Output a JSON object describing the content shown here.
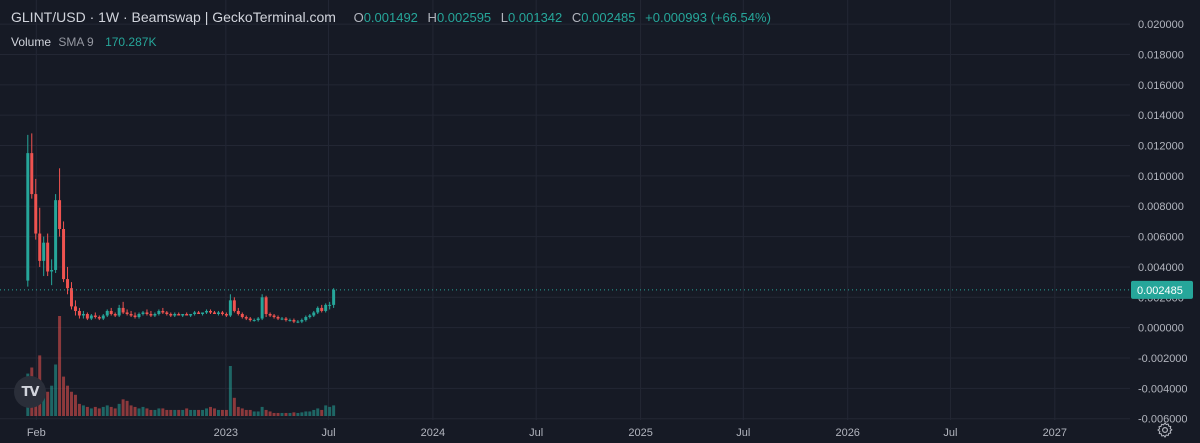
{
  "legend": {
    "title": "GLINT/USD · 1W · Beamswap | GeckoTerminal.com",
    "o_label": "O",
    "o": "0.001492",
    "h_label": "H",
    "h": "0.002595",
    "l_label": "L",
    "l": "0.001342",
    "c_label": "C",
    "c": "0.002485",
    "change": "+0.000993 (+66.54%)"
  },
  "volume_legend": {
    "name": "Volume",
    "sma": "SMA 9",
    "value": "170.287K"
  },
  "logo_text": "TV",
  "icons": {
    "logo": "tradingview-logo-icon",
    "settings": "gear-icon"
  },
  "colors": {
    "background": "#161a25",
    "up": "#26a69a",
    "down": "#ef5350",
    "text": "#b2b5be",
    "grid": "#232734"
  },
  "chart_data": {
    "type": "candlestick",
    "title": "GLINT/USD · 1W · Beamswap | GeckoTerminal.com",
    "interval": "1W",
    "price_axis": {
      "ticks": [
        "0.020000",
        "0.018000",
        "0.016000",
        "0.014000",
        "0.012000",
        "0.010000",
        "0.008000",
        "0.006000",
        "0.004000",
        "0.002000",
        "0.000000",
        "-0.002000",
        "-0.004000",
        "-0.006000"
      ],
      "range": [
        -0.0076,
        0.0206
      ]
    },
    "time_axis": {
      "ticks": [
        "Feb",
        "2023",
        "Jul",
        "2024",
        "Jul",
        "2025",
        "Jul",
        "2026",
        "Jul",
        "2027"
      ],
      "range": [
        "2021-11-29",
        "2027-05-10"
      ]
    },
    "tick_dates": [
      "2022-02-01",
      "2023-01-01",
      "2023-07-01",
      "2024-01-01",
      "2024-07-01",
      "2025-01-01",
      "2025-07-01",
      "2026-01-01",
      "2026-07-01",
      "2027-01-01"
    ],
    "first_candle_date": "2022-01-17",
    "last_price": 0.002485,
    "last_price_label": "0.002485",
    "grid": false,
    "volume_max": 3.3,
    "ohlc": [
      [
        0.0031,
        0.0127,
        0.0027,
        0.0115,
        1.4
      ],
      [
        0.0115,
        0.0128,
        0.0085,
        0.0088,
        1.6
      ],
      [
        0.0088,
        0.0098,
        0.0058,
        0.0062,
        1.2
      ],
      [
        0.0062,
        0.0079,
        0.004,
        0.0044,
        2.0
      ],
      [
        0.0044,
        0.006,
        0.0034,
        0.0056,
        0.9
      ],
      [
        0.0056,
        0.0062,
        0.0034,
        0.0037,
        0.8
      ],
      [
        0.0037,
        0.0045,
        0.0028,
        0.0038,
        1.0
      ],
      [
        0.0038,
        0.0088,
        0.0036,
        0.0084,
        1.7
      ],
      [
        0.0084,
        0.0105,
        0.006,
        0.0065,
        3.3
      ],
      [
        0.0065,
        0.007,
        0.003,
        0.0032,
        1.3
      ],
      [
        0.0032,
        0.004,
        0.0022,
        0.0026,
        1.0
      ],
      [
        0.0026,
        0.003,
        0.0012,
        0.0014,
        0.8
      ],
      [
        0.0014,
        0.0018,
        0.0008,
        0.0011,
        0.7
      ],
      [
        0.0011,
        0.0013,
        0.0006,
        0.0008,
        0.4
      ],
      [
        0.0008,
        0.0011,
        0.0006,
        0.0009,
        0.35
      ],
      [
        0.0009,
        0.001,
        0.0005,
        0.0006,
        0.3
      ],
      [
        0.0006,
        0.0009,
        0.0005,
        0.0008,
        0.25
      ],
      [
        0.0008,
        0.001,
        0.0006,
        0.0007,
        0.3
      ],
      [
        0.0007,
        0.0008,
        0.0005,
        0.0006,
        0.25
      ],
      [
        0.0006,
        0.0009,
        0.0005,
        0.0008,
        0.3
      ],
      [
        0.0008,
        0.0012,
        0.0007,
        0.0011,
        0.35
      ],
      [
        0.0011,
        0.0013,
        0.0008,
        0.0009,
        0.3
      ],
      [
        0.0009,
        0.001,
        0.0007,
        0.0008,
        0.25
      ],
      [
        0.0008,
        0.0015,
        0.0007,
        0.0013,
        0.4
      ],
      [
        0.0013,
        0.0017,
        0.0009,
        0.001,
        0.55
      ],
      [
        0.001,
        0.0012,
        0.0008,
        0.0009,
        0.5
      ],
      [
        0.0009,
        0.0011,
        0.0007,
        0.0008,
        0.35
      ],
      [
        0.0008,
        0.001,
        0.0006,
        0.0007,
        0.3
      ],
      [
        0.0007,
        0.001,
        0.0006,
        0.0009,
        0.25
      ],
      [
        0.0009,
        0.0011,
        0.0008,
        0.001,
        0.3
      ],
      [
        0.001,
        0.0012,
        0.0008,
        0.0009,
        0.25
      ],
      [
        0.0009,
        0.0011,
        0.0007,
        0.0008,
        0.2
      ],
      [
        0.0008,
        0.001,
        0.0007,
        0.0009,
        0.2
      ],
      [
        0.0009,
        0.0012,
        0.0008,
        0.0011,
        0.25
      ],
      [
        0.0011,
        0.0013,
        0.0009,
        0.001,
        0.25
      ],
      [
        0.001,
        0.0011,
        0.0008,
        0.0009,
        0.2
      ],
      [
        0.0009,
        0.001,
        0.0007,
        0.0008,
        0.2
      ],
      [
        0.0008,
        0.001,
        0.0007,
        0.0009,
        0.2
      ],
      [
        0.0009,
        0.001,
        0.0008,
        0.0008,
        0.2
      ],
      [
        0.0008,
        0.0009,
        0.0007,
        0.0009,
        0.2
      ],
      [
        0.0009,
        0.001,
        0.0008,
        0.0008,
        0.25
      ],
      [
        0.0008,
        0.0009,
        0.0007,
        0.0009,
        0.2
      ],
      [
        0.0009,
        0.0011,
        0.0008,
        0.001,
        0.2
      ],
      [
        0.001,
        0.0011,
        0.0009,
        0.0009,
        0.2
      ],
      [
        0.0009,
        0.001,
        0.0008,
        0.001,
        0.2
      ],
      [
        0.001,
        0.0012,
        0.0009,
        0.0011,
        0.25
      ],
      [
        0.0011,
        0.0012,
        0.0009,
        0.001,
        0.3
      ],
      [
        0.001,
        0.0011,
        0.0009,
        0.0009,
        0.25
      ],
      [
        0.0009,
        0.0011,
        0.0008,
        0.001,
        0.2
      ],
      [
        0.001,
        0.0011,
        0.0008,
        0.0009,
        0.2
      ],
      [
        0.0009,
        0.001,
        0.0007,
        0.0008,
        0.2
      ],
      [
        0.0008,
        0.0022,
        0.0007,
        0.0018,
        1.65
      ],
      [
        0.0018,
        0.002,
        0.001,
        0.0011,
        0.6
      ],
      [
        0.0011,
        0.0013,
        0.0008,
        0.0009,
        0.3
      ],
      [
        0.0009,
        0.001,
        0.0006,
        0.0007,
        0.25
      ],
      [
        0.0007,
        0.0008,
        0.0005,
        0.0006,
        0.2
      ],
      [
        0.0006,
        0.0007,
        0.0004,
        0.0005,
        0.2
      ],
      [
        0.0005,
        0.0006,
        0.0004,
        0.0005,
        0.15
      ],
      [
        0.0005,
        0.0007,
        0.0004,
        0.0006,
        0.15
      ],
      [
        0.0006,
        0.0022,
        0.0005,
        0.002,
        0.3
      ],
      [
        0.002,
        0.0021,
        0.0007,
        0.0009,
        0.2
      ],
      [
        0.0009,
        0.001,
        0.0007,
        0.0008,
        0.15
      ],
      [
        0.0008,
        0.0009,
        0.0006,
        0.0007,
        0.1
      ],
      [
        0.0007,
        0.0008,
        0.0005,
        0.0006,
        0.1
      ],
      [
        0.0006,
        0.0007,
        0.0005,
        0.0006,
        0.1
      ],
      [
        0.0006,
        0.0007,
        0.0004,
        0.0005,
        0.1
      ],
      [
        0.0005,
        0.0006,
        0.0004,
        0.0005,
        0.1
      ],
      [
        0.0005,
        0.0006,
        0.0003,
        0.0004,
        0.12
      ],
      [
        0.0004,
        0.0005,
        0.0003,
        0.0004,
        0.1
      ],
      [
        0.0004,
        0.0006,
        0.0003,
        0.0005,
        0.12
      ],
      [
        0.0005,
        0.0008,
        0.0004,
        0.0007,
        0.15
      ],
      [
        0.0007,
        0.0009,
        0.0006,
        0.0008,
        0.15
      ],
      [
        0.0008,
        0.0011,
        0.0007,
        0.001,
        0.2
      ],
      [
        0.001,
        0.0014,
        0.0009,
        0.0013,
        0.25
      ],
      [
        0.0013,
        0.0015,
        0.001,
        0.0011,
        0.2
      ],
      [
        0.0011,
        0.0016,
        0.001,
        0.0015,
        0.35
      ],
      [
        0.0015,
        0.0017,
        0.0012,
        0.0015,
        0.3
      ],
      [
        0.0015,
        0.0026,
        0.0013,
        0.0025,
        0.35
      ]
    ]
  }
}
